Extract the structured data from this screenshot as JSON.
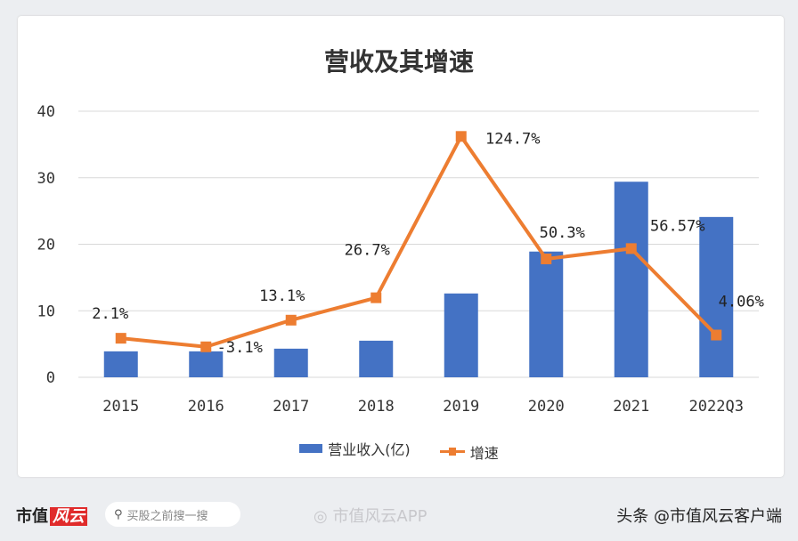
{
  "chart_data": {
    "type": "bar+line",
    "title": "营收及其增速",
    "categories": [
      "2015",
      "2016",
      "2017",
      "2018",
      "2019",
      "2020",
      "2021",
      "2022Q3"
    ],
    "ylim": [
      0,
      40
    ],
    "yticks": [
      0,
      10,
      20,
      30,
      40
    ],
    "y2lim": [
      -21.6,
      140
    ],
    "grid": true,
    "legend_position": "bottom",
    "series": [
      {
        "name": "营业收入(亿)",
        "type": "bar",
        "color": "#4472c4",
        "values": [
          3.9,
          3.9,
          4.3,
          5.5,
          12.6,
          18.9,
          29.4,
          24.1
        ]
      },
      {
        "name": "增速",
        "type": "line",
        "axis": "secondary",
        "color": "#ed7d31",
        "values": [
          2.1,
          -3.1,
          13.1,
          26.7,
          124.7,
          50.3,
          56.57,
          4.06
        ],
        "labels": [
          "2.1%",
          "-3.1%",
          "13.1%",
          "26.7%",
          "124.7%",
          "50.3%",
          "56.57%",
          "4.06%"
        ]
      }
    ]
  },
  "footer": {
    "logo": "市值",
    "logo_badge": "风云",
    "search_placeholder": "买股之前搜一搜",
    "watermark": "市值风云APP",
    "credit": "头条 @市值风云客户端"
  }
}
